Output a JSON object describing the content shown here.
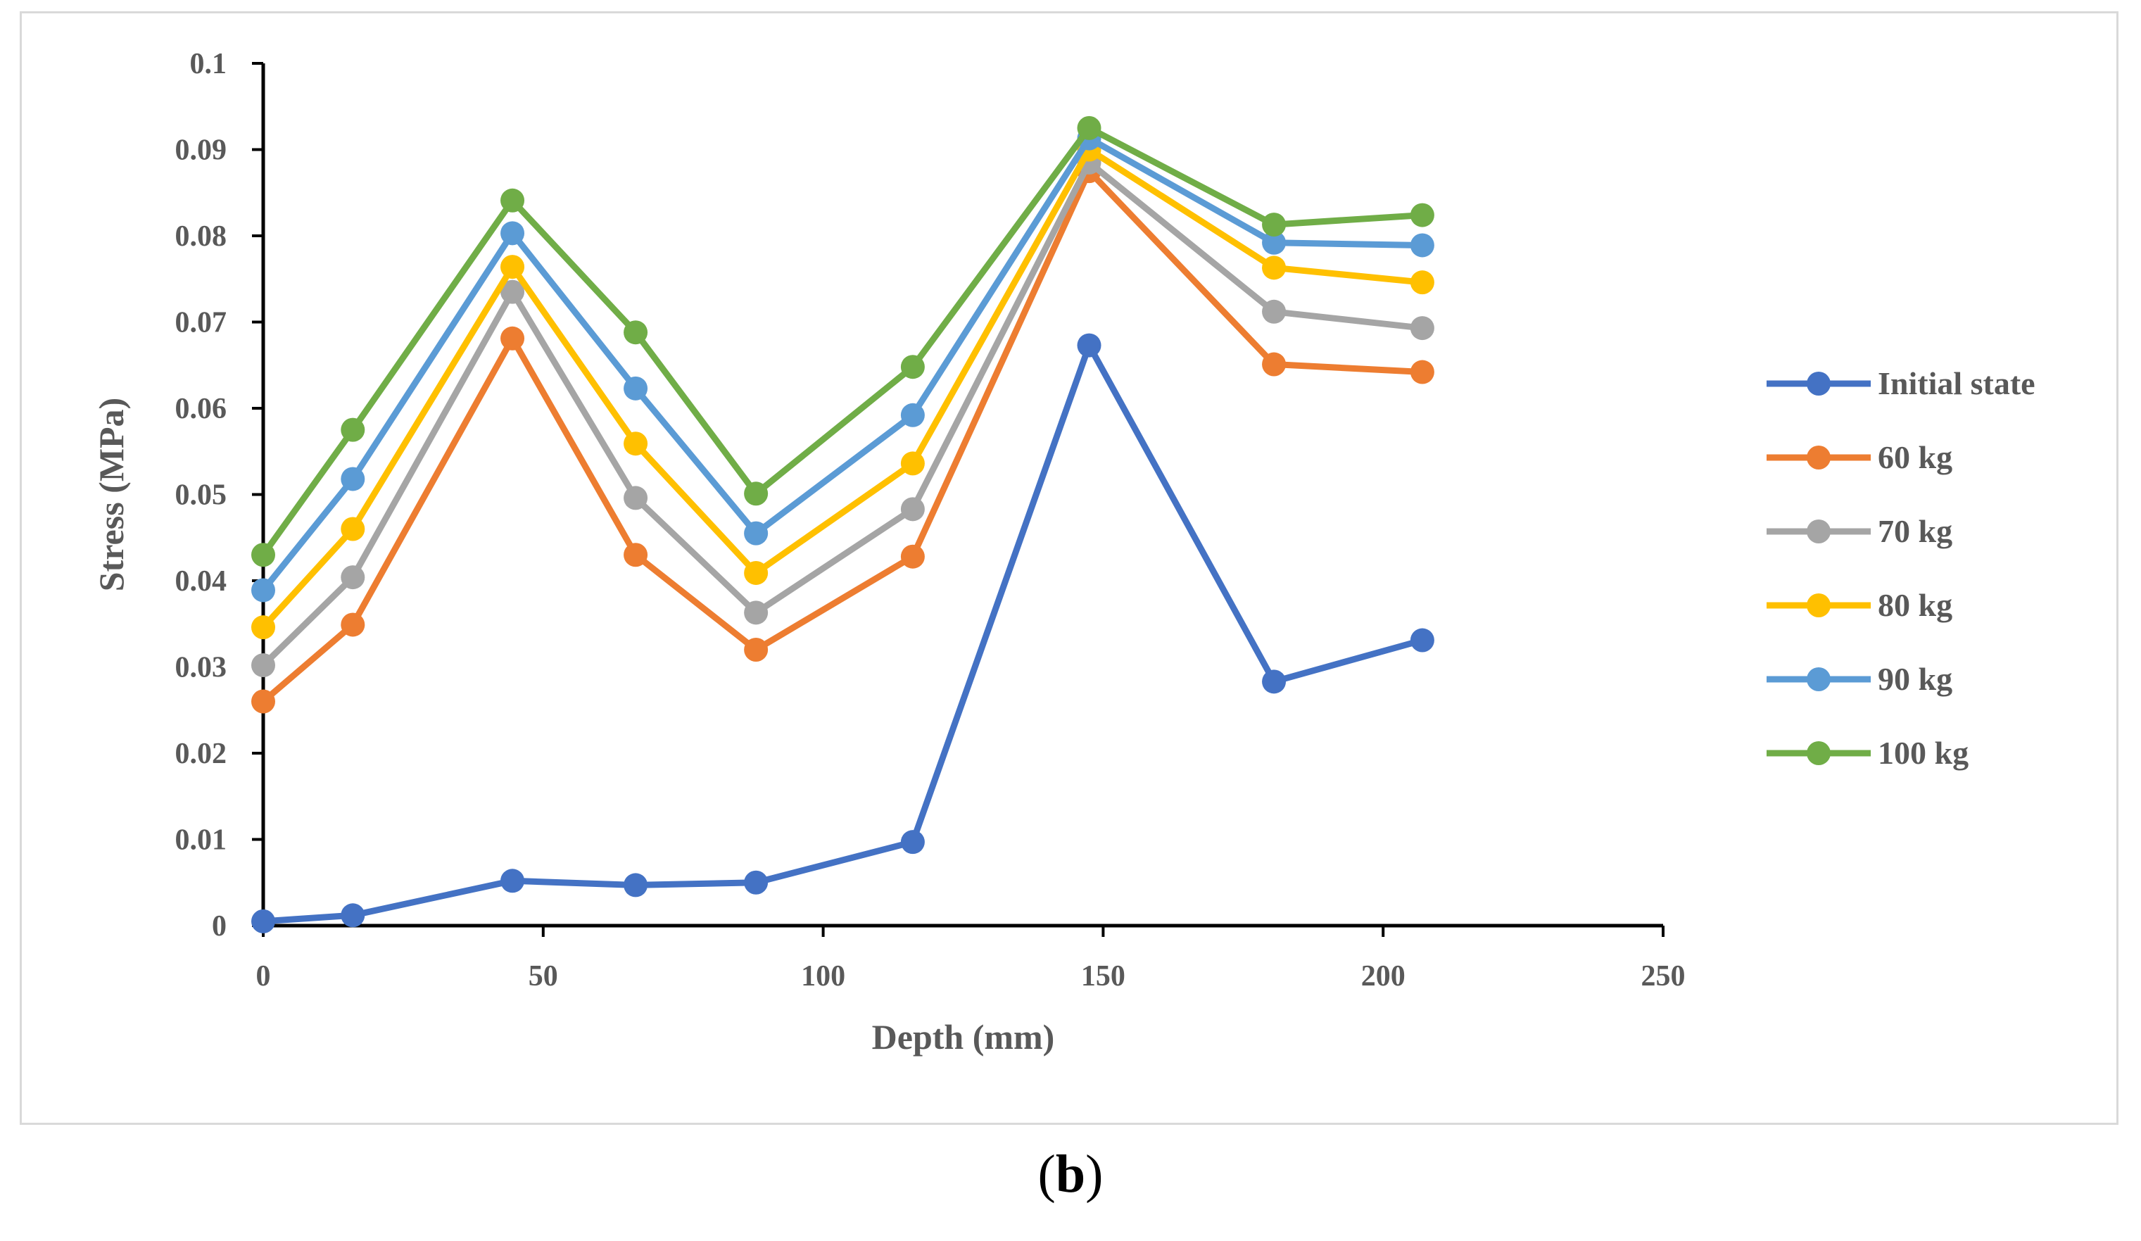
{
  "chart_data": {
    "type": "line",
    "title": "",
    "xlabel": "Depth (mm)",
    "ylabel": "Stress (MPa)",
    "xlim": [
      0,
      250
    ],
    "ylim": [
      0,
      0.1
    ],
    "xticks": [
      0,
      50,
      100,
      150,
      200,
      250
    ],
    "yticks": [
      0,
      0.01,
      0.02,
      0.03,
      0.04,
      0.05,
      0.06,
      0.07,
      0.08,
      0.09,
      0.1
    ],
    "xtick_labels": [
      "0",
      "50",
      "100",
      "150",
      "200",
      "250"
    ],
    "ytick_labels": [
      "0",
      "0.01",
      "0.02",
      "0.03",
      "0.04",
      "0.05",
      "0.06",
      "0.07",
      "0.08",
      "0.09",
      "0.1"
    ],
    "grid": false,
    "legend_position": "right",
    "x": [
      0,
      16,
      44.5,
      66.5,
      88,
      116,
      147.5,
      180.5,
      207
    ],
    "series": [
      {
        "name": "Initial state",
        "color": "#4472C4",
        "values": [
          0.0005,
          0.0012,
          0.0052,
          0.0047,
          0.005,
          0.0097,
          0.0673,
          0.0283,
          0.0331
        ]
      },
      {
        "name": "60 kg",
        "color": "#ED7D31",
        "values": [
          0.026,
          0.0349,
          0.0681,
          0.043,
          0.032,
          0.0428,
          0.0875,
          0.0651,
          0.0642
        ]
      },
      {
        "name": "70 kg",
        "color": "#A5A5A5",
        "values": [
          0.0302,
          0.0404,
          0.0735,
          0.0496,
          0.0363,
          0.0483,
          0.0885,
          0.0712,
          0.0693
        ]
      },
      {
        "name": "80 kg",
        "color": "#FFC000",
        "values": [
          0.0346,
          0.046,
          0.0764,
          0.0559,
          0.0409,
          0.0536,
          0.09,
          0.0763,
          0.0746
        ]
      },
      {
        "name": "90 kg",
        "color": "#5B9BD5",
        "values": [
          0.0389,
          0.0518,
          0.0803,
          0.0623,
          0.0455,
          0.0592,
          0.0913,
          0.0792,
          0.0789
        ]
      },
      {
        "name": "100 kg",
        "color": "#70AD47",
        "values": [
          0.043,
          0.0575,
          0.0841,
          0.0688,
          0.0501,
          0.0648,
          0.0925,
          0.0813,
          0.0824
        ]
      }
    ]
  },
  "panel_label": {
    "open": "(",
    "letter": "b",
    "close": ")"
  }
}
